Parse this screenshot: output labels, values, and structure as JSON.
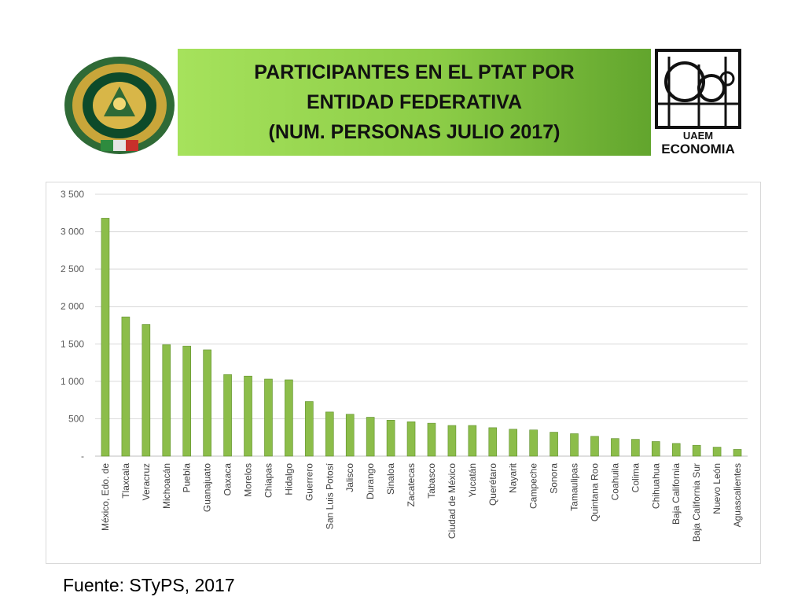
{
  "header": {
    "title_lines": [
      "PARTICIPANTES EN EL PTAT POR",
      "ENTIDAD FEDERATIVA",
      "(NUM. PERSONAS JULIO 2017)"
    ],
    "logo_left": "uaem-seal-logo",
    "logo_right_text": "UAEM ECONOMIA"
  },
  "colors": {
    "band": "#8ccd47",
    "bar": "#8cbd4a",
    "bar_edge": "#5f8f2a",
    "grid": "#d9d9d9"
  },
  "chart_data": {
    "type": "bar",
    "title": "",
    "xlabel": "",
    "ylabel": "",
    "ylim": [
      0,
      3500
    ],
    "y_ticks": [
      0,
      500,
      1000,
      1500,
      2000,
      2500,
      3000,
      3500
    ],
    "y_tick_labels": [
      "-",
      "500",
      "1 000",
      "1 500",
      "2 000",
      "2 500",
      "3 000",
      "3 500"
    ],
    "grid": true,
    "categories": [
      "México, Edo. de",
      "Tlaxcala",
      "Veracruz",
      "Michoacán",
      "Puebla",
      "Guanajuato",
      "Oaxaca",
      "Morelos",
      "Chiapas",
      "Hidalgo",
      "Guerrero",
      "San Luis Potosí",
      "Jalisco",
      "Durango",
      "Sinaloa",
      "Zacatecas",
      "Tabasco",
      "Ciudad de México",
      "Yucatán",
      "Querétaro",
      "Nayarit",
      "Campeche",
      "Sonora",
      "Tamaulipas",
      "Quintana Roo",
      "Coahuila",
      "Colima",
      "Chihuahua",
      "Baja California",
      "Baja California Sur",
      "Nuevo León",
      "Aguascalientes"
    ],
    "values": [
      3180,
      1860,
      1760,
      1490,
      1470,
      1420,
      1090,
      1070,
      1030,
      1020,
      730,
      590,
      560,
      520,
      480,
      460,
      440,
      410,
      410,
      380,
      360,
      350,
      320,
      300,
      265,
      235,
      225,
      195,
      170,
      145,
      120,
      90
    ]
  },
  "footer": {
    "source": "Fuente: STyPS, 2017"
  }
}
